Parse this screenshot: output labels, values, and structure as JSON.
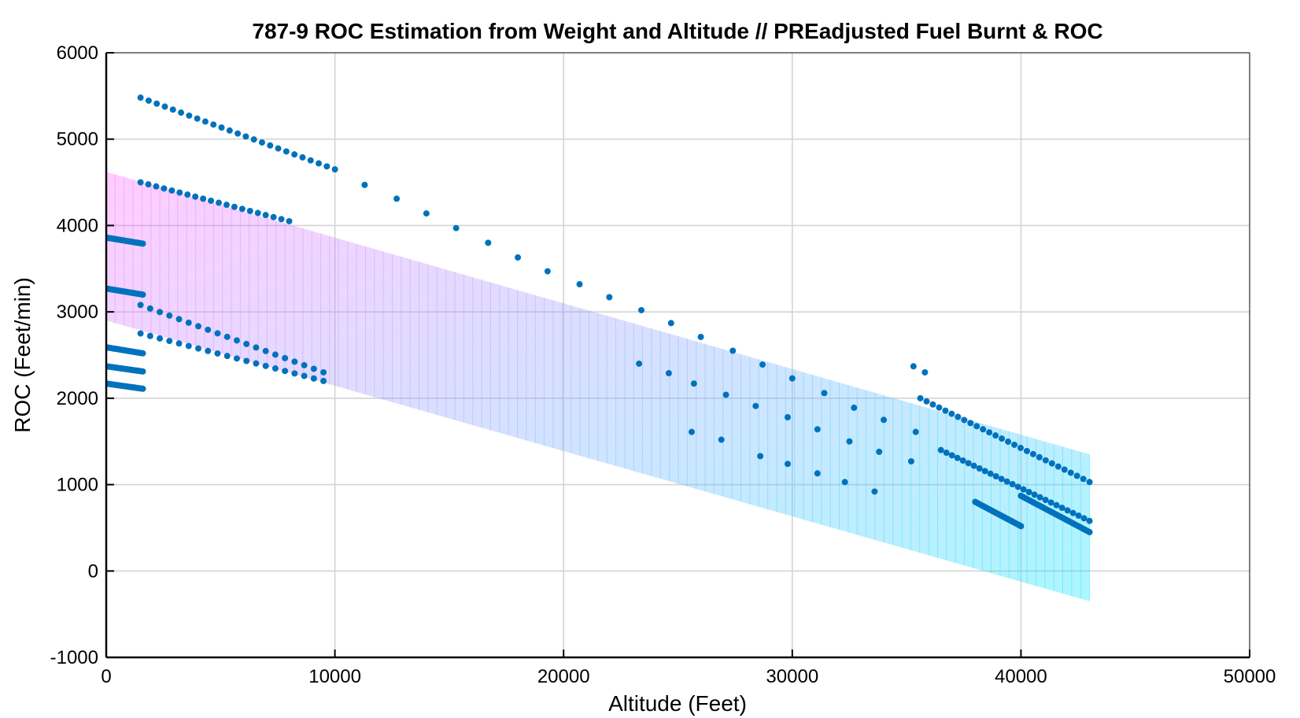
{
  "chart_data": {
    "type": "scatter",
    "title": "787-9 ROC Estimation from Weight and Altitude // PREadjusted Fuel Burnt & ROC",
    "xlabel": "Altitude (Feet)",
    "ylabel": "ROC (Feet/min)",
    "xlim": [
      0,
      50000
    ],
    "ylim": [
      -1000,
      6000
    ],
    "xticks": [
      0,
      10000,
      20000,
      30000,
      40000,
      50000
    ],
    "yticks": [
      -1000,
      0,
      1000,
      2000,
      3000,
      4000,
      5000,
      6000
    ],
    "xtick_labels": [
      "0",
      "10000",
      "20000",
      "30000",
      "40000",
      "50000"
    ],
    "ytick_labels": [
      "-1000",
      "0",
      "1000",
      "2000",
      "3000",
      "4000",
      "5000",
      "6000"
    ],
    "grid": true,
    "colors": {
      "points": "#0072bd",
      "surface_top": "#ff66ff",
      "surface_bottom": "#00e5ff",
      "grid": "#d4d4d4",
      "axes": "#000000"
    },
    "surface": {
      "x_range": [
        0,
        43000
      ],
      "top_left": 4620,
      "bottom_left": 2900,
      "top_right": 1350,
      "bottom_right": -350
    },
    "series": [
      {
        "kind": "segments",
        "segments": [
          {
            "x0": 0,
            "y0": 3860,
            "x1": 1600,
            "y1": 3790,
            "n": 20
          },
          {
            "x0": 0,
            "y0": 3270,
            "x1": 1600,
            "y1": 3200,
            "n": 20
          },
          {
            "x0": 0,
            "y0": 2590,
            "x1": 1600,
            "y1": 2520,
            "n": 20
          },
          {
            "x0": 0,
            "y0": 2370,
            "x1": 1600,
            "y1": 2310,
            "n": 20
          },
          {
            "x0": 0,
            "y0": 2170,
            "x1": 1600,
            "y1": 2110,
            "n": 20
          },
          {
            "x0": 1500,
            "y0": 5480,
            "x1": 10000,
            "y1": 4650,
            "n": 25
          },
          {
            "x0": 1500,
            "y0": 4500,
            "x1": 8000,
            "y1": 4050,
            "n": 20
          },
          {
            "x0": 1500,
            "y0": 3080,
            "x1": 9500,
            "y1": 2300,
            "n": 20
          },
          {
            "x0": 1500,
            "y0": 2750,
            "x1": 9500,
            "y1": 2200,
            "n": 20
          },
          {
            "x0": 35600,
            "y0": 2000,
            "x1": 43000,
            "y1": 1030,
            "n": 28
          },
          {
            "x0": 36500,
            "y0": 1400,
            "x1": 43000,
            "y1": 580,
            "n": 28
          },
          {
            "x0": 38000,
            "y0": 800,
            "x1": 40000,
            "y1": 520,
            "n": 24
          },
          {
            "x0": 40000,
            "y0": 870,
            "x1": 43000,
            "y1": 450,
            "n": 30
          }
        ]
      },
      {
        "kind": "points",
        "x": [
          11300,
          12700,
          14000,
          15300,
          16700,
          18000,
          19300,
          20700,
          22000,
          23400,
          24700,
          26000,
          27400,
          28700,
          30000,
          31400,
          32700,
          34000,
          35300,
          35800
        ],
        "y": [
          4470,
          4310,
          4140,
          3970,
          3800,
          3630,
          3470,
          3320,
          3170,
          3020,
          2870,
          2710,
          2550,
          2390,
          2230,
          2060,
          1890,
          1750,
          2370,
          2300
        ]
      },
      {
        "kind": "points",
        "x": [
          25700,
          27100,
          28400,
          29800,
          31100,
          32500,
          33800,
          35200,
          33600,
          32300,
          31100,
          29800
        ],
        "y": [
          2170,
          2040,
          1910,
          1780,
          1640,
          1500,
          1380,
          1270,
          920,
          1030,
          1130,
          1240
        ]
      },
      {
        "kind": "points",
        "x": [
          23300,
          24600,
          25600,
          26900,
          28600,
          35400
        ],
        "y": [
          2400,
          2290,
          1610,
          1520,
          1330,
          1610
        ]
      }
    ]
  }
}
